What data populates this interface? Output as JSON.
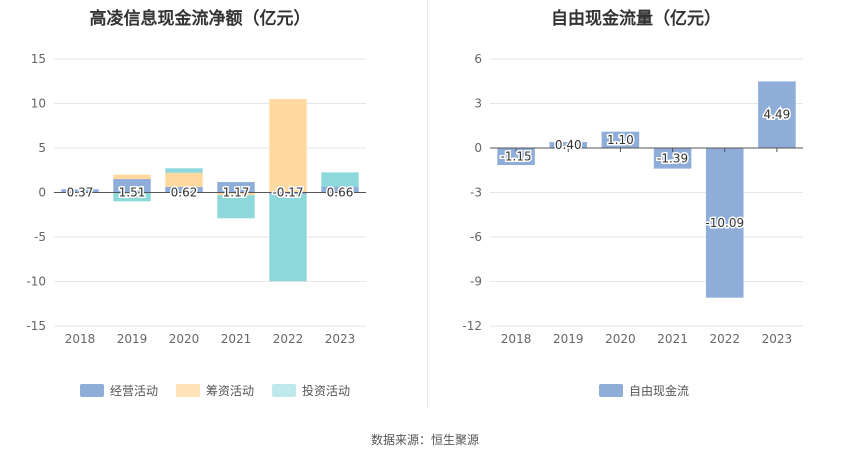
{
  "source_text": "数据来源：恒生聚源",
  "chart_data": [
    {
      "type": "bar",
      "stacked": true,
      "title": "高凌信息现金流净额（亿元）",
      "categories": [
        "2018",
        "2019",
        "2020",
        "2021",
        "2022",
        "2023"
      ],
      "ylim": [
        -15,
        15
      ],
      "yticks": [
        15,
        10,
        5,
        0,
        -5,
        -10,
        -15
      ],
      "grid": true,
      "legend_position": "bottom",
      "series": [
        {
          "name": "经营活动",
          "color": "#8fadd9",
          "values": [
            0.37,
            1.51,
            0.62,
            1.17,
            -0.17,
            0.66
          ]
        },
        {
          "name": "筹资活动",
          "color": "#ffd9a0",
          "values": [
            0.0,
            0.5,
            1.6,
            -0.3,
            10.5,
            0.0
          ]
        },
        {
          "name": "投资活动",
          "color": "#8dd8da",
          "values": [
            0.0,
            -1.0,
            0.5,
            -2.6,
            -9.8,
            1.6
          ]
        }
      ],
      "labels": [
        "0.37",
        "1.51",
        "0.62",
        "1.17",
        "-0.17",
        "0.66"
      ]
    },
    {
      "type": "bar",
      "title": "自由现金流量（亿元）",
      "categories": [
        "2018",
        "2019",
        "2020",
        "2021",
        "2022",
        "2023"
      ],
      "ylim": [
        -12,
        6
      ],
      "yticks": [
        6,
        3,
        0,
        -3,
        -6,
        -9,
        -12
      ],
      "grid": true,
      "legend_position": "bottom",
      "series": [
        {
          "name": "自由现金流",
          "color": "#8fadd9",
          "values": [
            -1.15,
            0.4,
            1.1,
            -1.39,
            -10.09,
            4.49
          ]
        }
      ],
      "labels": [
        "-1.15",
        "0.40",
        "1.10",
        "-1.39",
        "-10.09",
        "4.49"
      ]
    }
  ]
}
